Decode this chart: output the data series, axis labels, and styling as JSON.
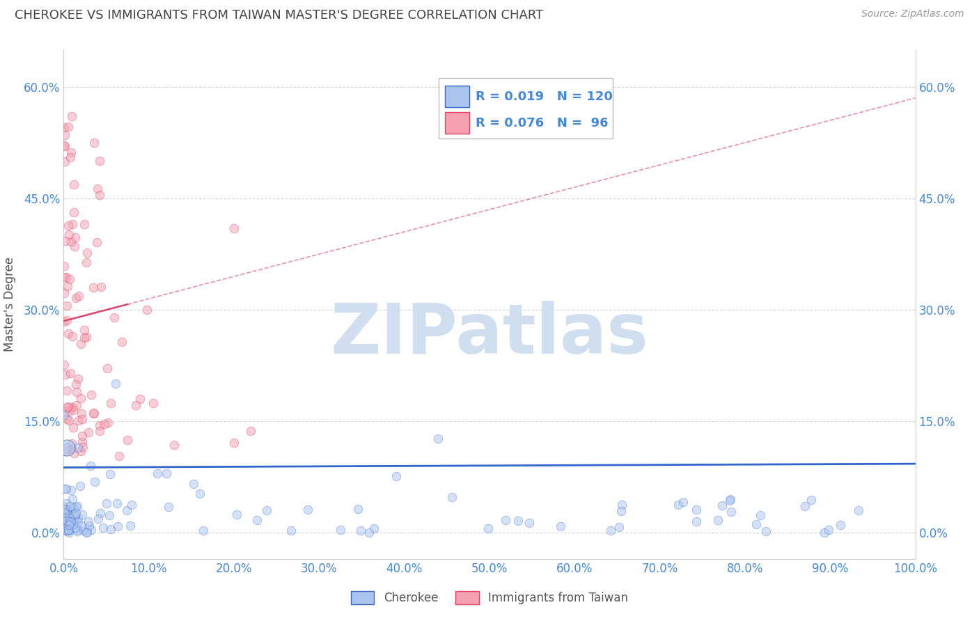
{
  "title": "CHEROKEE VS IMMIGRANTS FROM TAIWAN MASTER'S DEGREE CORRELATION CHART",
  "source": "Source: ZipAtlas.com",
  "ylabel": "Master's Degree",
  "background_color": "#ffffff",
  "grid_color": "#cccccc",
  "title_color": "#444444",
  "title_fontsize": 13,
  "source_fontsize": 10,
  "axis_label_color": "#555555",
  "xmin": 0.0,
  "xmax": 1.0,
  "ymin": -0.035,
  "ymax": 0.65,
  "x_ticks": [
    0.0,
    0.1,
    0.2,
    0.3,
    0.4,
    0.5,
    0.6,
    0.7,
    0.8,
    0.9,
    1.0
  ],
  "x_tick_labels": [
    "0.0%",
    "10.0%",
    "20.0%",
    "30.0%",
    "40.0%",
    "50.0%",
    "60.0%",
    "70.0%",
    "80.0%",
    "90.0%",
    "100.0%"
  ],
  "y_ticks": [
    0.0,
    0.15,
    0.3,
    0.45,
    0.6
  ],
  "y_tick_labels": [
    "0.0%",
    "15.0%",
    "30.0%",
    "45.0%",
    "60.0%"
  ],
  "tick_color": "#4488dd",
  "tick_fontsize": 12,
  "series1_color": "#aac4ee",
  "series2_color": "#f4a0b0",
  "trendline1_color": "#3366cc",
  "trendline2_color": "#dd4466",
  "marker_size": 9,
  "marker_alpha": 0.5,
  "watermark": "ZIPatlas",
  "watermark_color": "#d0dff0",
  "watermark_fontsize": 72,
  "legend_r1_val": "0.019",
  "legend_n1_val": "120",
  "legend_r2_val": "0.076",
  "legend_n2_val": " 96",
  "series1_seed": 12345,
  "series2_seed": 67890
}
